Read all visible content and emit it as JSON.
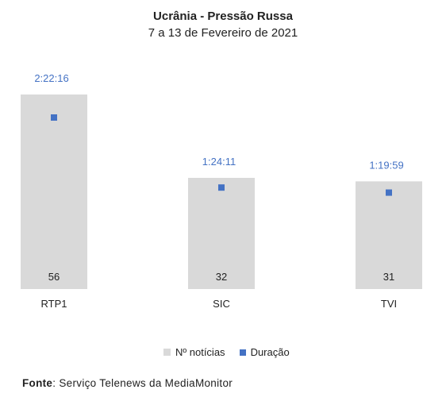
{
  "chart_data": {
    "type": "bar",
    "title": "Ucrânia - Pressão Russa",
    "subtitle": "7 a 13 de Fevereiro de 2021",
    "categories": [
      "RTP1",
      "SIC",
      "TVI"
    ],
    "series": [
      {
        "name": "Nº notícias",
        "type": "bar",
        "color": "#d9d9d9",
        "values": [
          56,
          32,
          31
        ]
      },
      {
        "name": "Duração",
        "type": "scatter",
        "color": "#4472c4",
        "values": [
          "2:22:16",
          "1:24:11",
          "1:19:59"
        ],
        "seconds": [
          8536,
          5051,
          4799
        ]
      }
    ],
    "legend": "bottom",
    "grid": false
  },
  "source": {
    "label": "Fonte",
    "text": "Serviço Telenews da MediaMonitor"
  }
}
